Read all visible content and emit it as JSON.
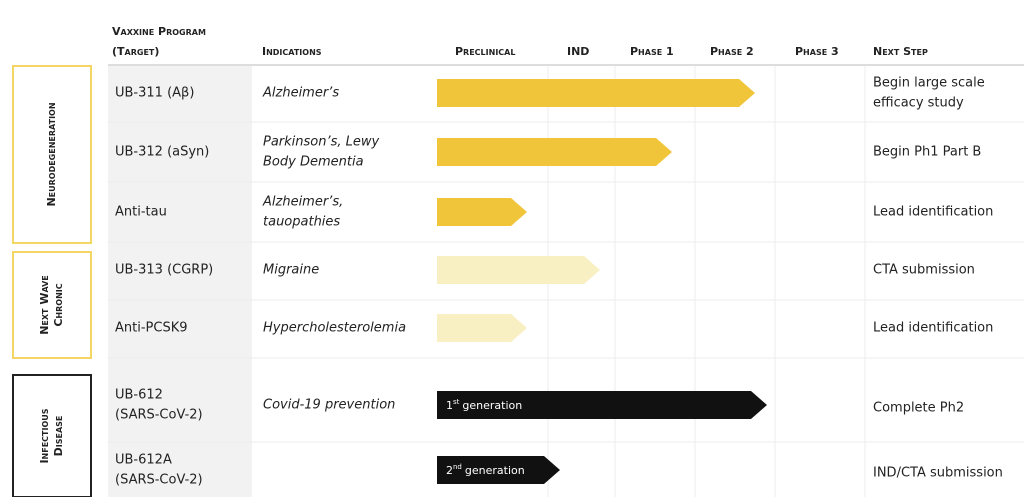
{
  "header": {
    "program": [
      "Vaxxine Program",
      "(Target)"
    ],
    "indications": "Indications",
    "stages": [
      "Preclinical",
      "IND",
      "Phase 1",
      "Phase 2",
      "Phase 3"
    ],
    "next_step": "Next Step"
  },
  "groups": [
    {
      "label": [
        "Neurodegeneration"
      ]
    },
    {
      "label": [
        "Next Wave",
        "Chronic"
      ]
    },
    {
      "label": [
        "Infectious",
        "Disease"
      ]
    }
  ],
  "rows": [
    {
      "program": [
        "UB-311 (Aβ)"
      ],
      "indication": [
        "Alzheimer’s"
      ],
      "next_step": [
        "Begin large scale",
        "efficacy study"
      ]
    },
    {
      "program": [
        "UB-312 (aSyn)"
      ],
      "indication": [
        "Parkinson’s, Lewy",
        "Body Dementia"
      ],
      "next_step": [
        "Begin Ph1 Part B"
      ]
    },
    {
      "program": [
        "Anti-tau"
      ],
      "indication": [
        "Alzheimer’s,",
        "tauopathies"
      ],
      "next_step": [
        "Lead identification"
      ]
    },
    {
      "program": [
        "UB-313 (CGRP)"
      ],
      "indication": [
        "Migraine"
      ],
      "next_step": [
        "CTA submission"
      ]
    },
    {
      "program": [
        "Anti-PCSK9"
      ],
      "indication": [
        "Hypercholesterolemia"
      ],
      "next_step": [
        "Lead identification"
      ]
    },
    {
      "program": [
        "UB-612",
        "(SARS-CoV-2)"
      ],
      "indication": [
        "Covid-19 prevention"
      ],
      "next_step": [
        "Complete Ph2"
      ],
      "arrow_label": {
        "ordinal": "1",
        "suffix": "st",
        "text": "generation"
      }
    },
    {
      "program": [
        "UB-612A",
        "(SARS-CoV-2)"
      ],
      "next_step": [
        "IND/CTA submission"
      ],
      "arrow_label": {
        "ordinal": "2",
        "suffix": "nd",
        "text": "generation"
      }
    }
  ]
}
